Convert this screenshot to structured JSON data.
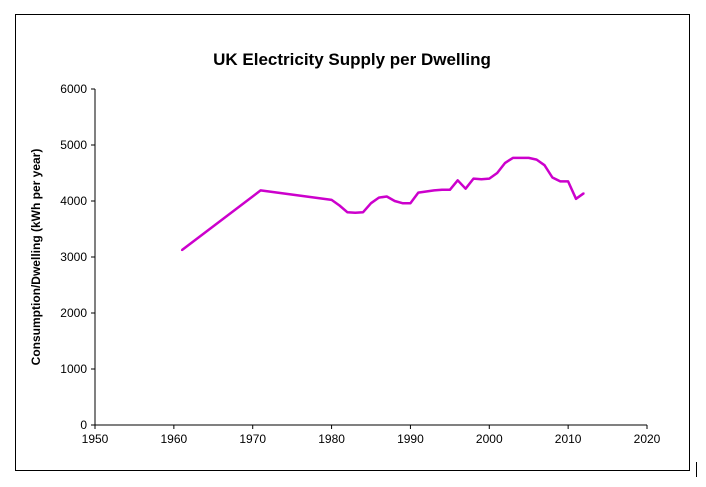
{
  "chart_data": {
    "type": "line",
    "title": "UK Electricity Supply per Dwelling",
    "xlabel": "",
    "ylabel": "Consumption/Dwelling (kWh per year)",
    "xlim": [
      1950,
      2020
    ],
    "ylim": [
      0,
      6000
    ],
    "x_ticks": [
      1950,
      1960,
      1970,
      1980,
      1990,
      2000,
      2010,
      2020
    ],
    "y_ticks": [
      0,
      1000,
      2000,
      3000,
      4000,
      5000,
      6000
    ],
    "grid": false,
    "legend": "none",
    "line_color": "#cc00cc",
    "series": [
      {
        "name": "Consumption/Dwelling",
        "x": [
          1961,
          1971,
          1980,
          1981,
          1982,
          1983,
          1984,
          1985,
          1986,
          1987,
          1988,
          1989,
          1990,
          1991,
          1992,
          1993,
          1994,
          1995,
          1996,
          1997,
          1998,
          1999,
          2000,
          2001,
          2002,
          2003,
          2004,
          2005,
          2006,
          2007,
          2008,
          2009,
          2010,
          2011,
          2012
        ],
        "y": [
          3120,
          4190,
          4020,
          3920,
          3800,
          3790,
          3800,
          3960,
          4060,
          4080,
          4000,
          3960,
          3960,
          4150,
          4170,
          4190,
          4200,
          4200,
          4370,
          4220,
          4400,
          4390,
          4400,
          4500,
          4680,
          4770,
          4770,
          4770,
          4740,
          4640,
          4420,
          4350,
          4350,
          4040,
          4140
        ]
      }
    ]
  }
}
